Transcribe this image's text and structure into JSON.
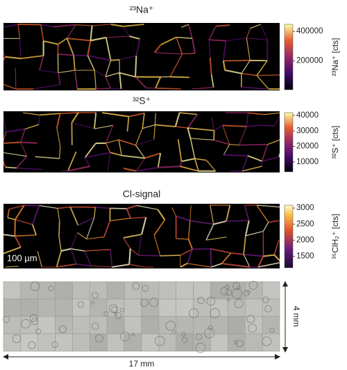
{
  "panels": [
    {
      "title": "²³Na⁺",
      "colorbar": {
        "label": "²³Na⁺ [cts]",
        "lim": [
          5000,
          448000
        ],
        "ticks": [
          400000,
          200000
        ]
      }
    },
    {
      "title": "³²S⁺",
      "colorbar": {
        "label": "³²S⁺ [cts]",
        "lim": [
          3600,
          41800
        ],
        "ticks": [
          40000,
          30000,
          20000,
          10000
        ]
      }
    },
    {
      "title": "Cl-signal",
      "scale_bar": "100 µm",
      "colorbar": {
        "label": "³⁵ClH₂⁺ [cts]",
        "lim": [
          1140,
          3090
        ],
        "ticks": [
          3000,
          2500,
          2000,
          1500
        ]
      }
    }
  ],
  "photo": {
    "height_label": "4 mm",
    "width_label": "17 mm"
  }
}
